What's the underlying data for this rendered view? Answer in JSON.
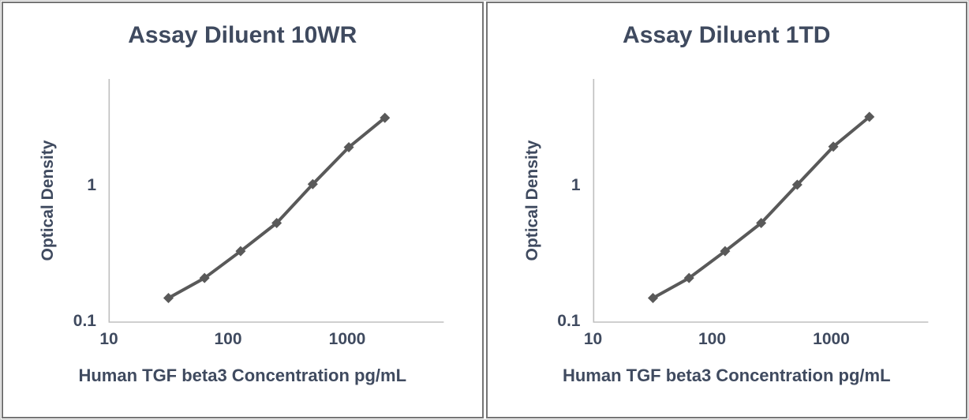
{
  "figure": {
    "kind": "two-panel ELISA standard curve comparison",
    "panels": 2
  },
  "colors": {
    "text": "#3f4a5f",
    "series": "#595959",
    "axis_line": "#bfbfbf",
    "panel_border": "#757575",
    "outer_border": "#cfcfcf",
    "background": "#ffffff"
  },
  "chart_data": [
    {
      "type": "line",
      "title": "Assay Diluent 10WR",
      "xlabel": "Human TGF beta3 Concentration pg/mL",
      "ylabel": "Optical Density",
      "xscale": "log",
      "yscale": "log",
      "x": [
        31.25,
        62.5,
        125,
        250,
        500,
        1000,
        2000
      ],
      "y": [
        0.15,
        0.21,
        0.33,
        0.53,
        1.02,
        1.9,
        3.12
      ],
      "xlim": [
        10,
        6200
      ],
      "ylim": [
        0.1,
        6
      ],
      "x_ticks": [
        10,
        100,
        1000
      ],
      "x_tick_labels": [
        "10",
        "100",
        "1000"
      ],
      "y_ticks": [
        1,
        0.1
      ],
      "y_tick_labels": [
        "1",
        "0.1"
      ],
      "grid": false,
      "legend": false,
      "marker": "diamond",
      "series_color": "#595959"
    },
    {
      "type": "line",
      "title": "Assay Diluent 1TD",
      "xlabel": "Human TGF beta3 Concentration pg/mL",
      "ylabel": "Optical Density",
      "xscale": "log",
      "yscale": "log",
      "x": [
        31.25,
        62.5,
        125,
        250,
        500,
        1000,
        2000
      ],
      "y": [
        0.15,
        0.21,
        0.33,
        0.53,
        1.01,
        1.92,
        3.17
      ],
      "xlim": [
        10,
        6200
      ],
      "ylim": [
        0.1,
        6
      ],
      "x_ticks": [
        10,
        100,
        1000
      ],
      "x_tick_labels": [
        "10",
        "100",
        "1000"
      ],
      "y_ticks": [
        1,
        0.1
      ],
      "y_tick_labels": [
        "1",
        "0.1"
      ],
      "grid": false,
      "legend": false,
      "marker": "diamond",
      "series_color": "#595959"
    }
  ]
}
